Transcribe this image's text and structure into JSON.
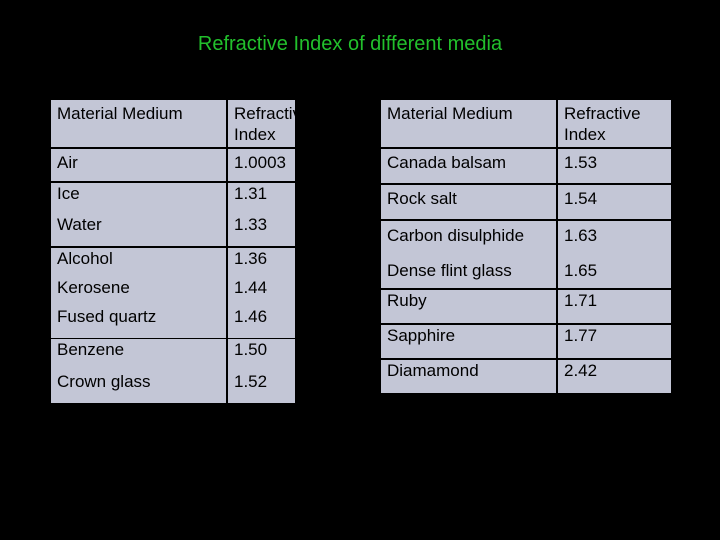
{
  "page": {
    "title": "Refractive Index of different media",
    "colors": {
      "background": "#000000",
      "title": "#22c02c",
      "cell_fill": "#c3c6d6"
    }
  },
  "left_table": {
    "headers": [
      "Material Medium",
      "Refractive Index"
    ],
    "rows": [
      [
        "Air",
        "1.0003"
      ],
      [
        "Ice",
        "1.31"
      ],
      [
        "Water",
        "1.33"
      ],
      [
        "Alcohol",
        "1.36"
      ],
      [
        "Kerosene",
        "1.44"
      ],
      [
        "Fused quartz",
        "1.46"
      ],
      [
        "Benzene",
        "1.50"
      ],
      [
        "Crown glass",
        "1.52"
      ]
    ]
  },
  "right_table": {
    "headers": [
      "Material Medium",
      "Refractive Index"
    ],
    "rows": [
      [
        "Canada balsam",
        "1.53"
      ],
      [
        "Rock salt",
        "1.54"
      ],
      [
        "Carbon disulphide",
        "1.63"
      ],
      [
        "Dense flint glass",
        "1.65"
      ],
      [
        "Ruby",
        "1.71"
      ],
      [
        "Sapphire",
        "1.77"
      ],
      [
        "Diamamond",
        "2.42"
      ]
    ]
  }
}
